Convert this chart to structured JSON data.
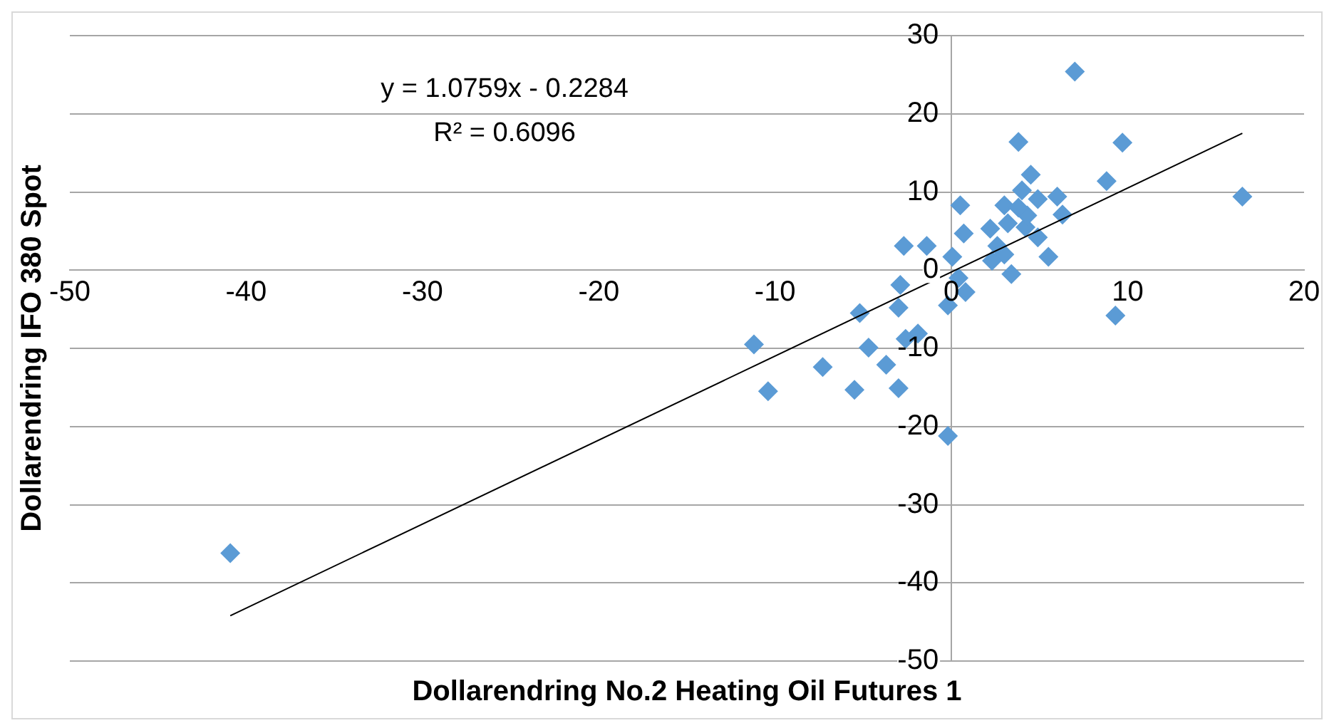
{
  "chart_data": {
    "type": "scatter",
    "xlabel": "Dollarendring No.2 Heating Oil Futures 1",
    "ylabel": "Dollarendring IFO 380 Spot",
    "annotations": [
      "y = 1.0759x - 0.2284",
      "R² = 0.6096"
    ],
    "xlim": [
      -50,
      20
    ],
    "xticks": [
      -50,
      -40,
      -30,
      -20,
      -10,
      0,
      10,
      20
    ],
    "ylim": [
      -50,
      30
    ],
    "yticks": [
      -50,
      -40,
      -30,
      -20,
      -10,
      0,
      10,
      20,
      30
    ],
    "grid": "y",
    "legend": false,
    "marker": "diamond",
    "series": [
      {
        "color": "#5b9bd5",
        "x": [
          -40.9,
          7.0,
          3.8,
          9.7,
          8.8,
          16.5,
          9.3,
          4.5,
          4.0,
          4.9,
          6.0,
          6.3,
          3.0,
          2.2,
          4.2,
          4.9,
          2.6,
          3.0,
          2.3,
          5.5,
          3.4,
          0.5,
          0.7,
          0.05,
          -2.7,
          -1.4,
          -2.9,
          -3.0,
          -5.2,
          0.8,
          0.4,
          -0.2,
          -1.9,
          -2.6,
          -4.7,
          -3.7,
          -11.2,
          -10.4,
          -7.3,
          -5.5,
          -3.0,
          -0.2,
          4.3,
          3.2,
          3.8
        ],
        "values": [
          -36.2,
          25.4,
          16.4,
          16.3,
          11.4,
          9.4,
          -5.8,
          12.2,
          10.2,
          9.1,
          9.4,
          7.1,
          8.3,
          5.3,
          5.5,
          4.2,
          3.1,
          2.0,
          1.2,
          1.7,
          -0.5,
          8.3,
          4.7,
          1.7,
          3.1,
          3.1,
          -1.9,
          -4.8,
          -5.5,
          -2.8,
          -1.0,
          -4.5,
          -8.1,
          -8.8,
          -9.9,
          -12.1,
          -9.5,
          -15.5,
          -12.4,
          -15.3,
          -15.1,
          -21.2,
          7.0,
          6.0,
          8.0
        ]
      },
      {
        "type": "line",
        "color": "#000000",
        "marker": "none",
        "x": [
          -40.9,
          16.5
        ],
        "values": [
          -44.2,
          17.5
        ]
      }
    ]
  }
}
